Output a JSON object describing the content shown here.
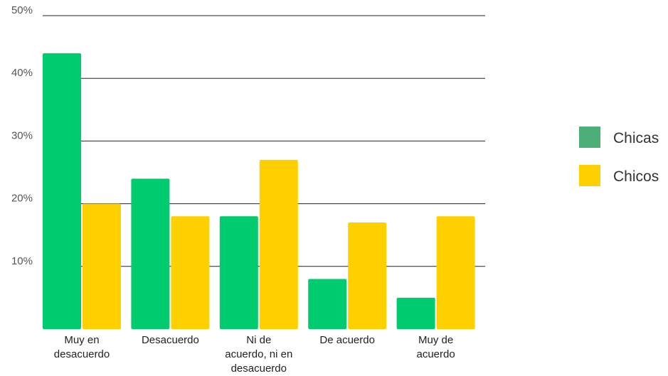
{
  "chart_data": {
    "type": "bar",
    "title": "",
    "xlabel": "",
    "ylabel": "",
    "categories": [
      [
        "Muy en",
        "desacuerdo"
      ],
      [
        "Desacuerdo"
      ],
      [
        "Ni de",
        "acuerdo, ni en",
        "desacuerdo"
      ],
      [
        "De acuerdo"
      ],
      [
        "Muy de",
        "acuerdo"
      ]
    ],
    "series": [
      {
        "name": "Chicas",
        "color": "#00CC6F",
        "values": [
          44,
          24,
          18,
          8,
          5
        ]
      },
      {
        "name": "Chicos",
        "color": "#FFD000",
        "values": [
          20,
          18,
          27,
          17,
          18
        ]
      }
    ],
    "ylim": [
      0,
      50
    ],
    "yticks": [
      10,
      20,
      30,
      40,
      50
    ],
    "ytick_labels": [
      "10%",
      "20%",
      "30%",
      "40%",
      "50%"
    ],
    "grid": true,
    "legend": {
      "position": "right",
      "entries": [
        {
          "label": "Chicas",
          "color": "#4CAF78"
        },
        {
          "label": "Chicos",
          "color": "#FFD000"
        }
      ]
    }
  }
}
